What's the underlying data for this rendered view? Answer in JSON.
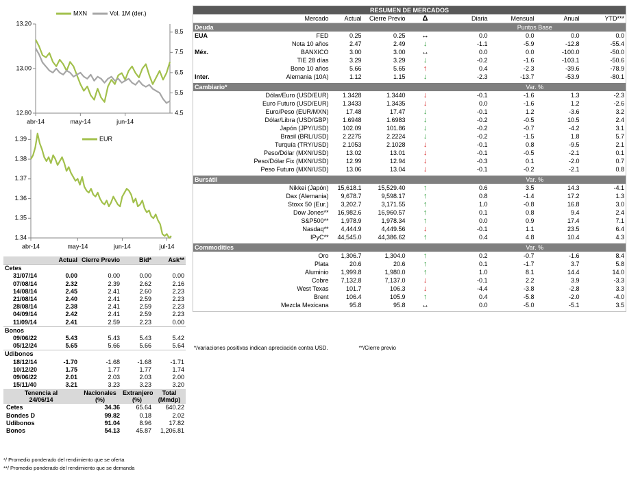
{
  "chart_data": [
    {
      "type": "line",
      "categories": [
        "abr-14",
        null,
        null,
        null,
        null,
        null,
        null,
        null,
        null,
        null,
        null,
        null,
        null,
        "may-14",
        null,
        null,
        null,
        null,
        null,
        null,
        null,
        null,
        null,
        null,
        null,
        null,
        "jun-14",
        null,
        null,
        null,
        null,
        null,
        null,
        null,
        null,
        null,
        null,
        null,
        null,
        null
      ],
      "series": [
        {
          "name": "MXN",
          "color": "#a2c04c",
          "values": [
            13.13,
            13.1,
            13.06,
            13.05,
            13.07,
            13.03,
            13.01,
            13.04,
            13.02,
            12.99,
            13.03,
            13.01,
            12.97,
            12.93,
            12.9,
            12.92,
            12.88,
            12.86,
            12.91,
            12.87,
            12.85,
            12.92,
            12.95,
            12.93,
            12.97,
            12.98,
            12.95,
            12.99,
            13.01,
            12.98,
            12.96,
            13.0,
            13.02,
            12.97,
            12.93,
            12.96,
            12.99,
            12.95,
            12.98,
            13.03
          ]
        },
        {
          "name": "Vol. 1M (der.)",
          "color": "#a6a6a6",
          "axis": "y2",
          "values": [
            7.7,
            7.4,
            7.0,
            6.8,
            6.6,
            6.5,
            6.7,
            6.5,
            6.4,
            6.6,
            6.5,
            6.3,
            6.4,
            6.5,
            6.3,
            6.2,
            6.4,
            6.1,
            6.3,
            6.2,
            6.0,
            6.2,
            6.3,
            6.1,
            6.2,
            6.0,
            6.1,
            6.2,
            6.0,
            5.9,
            6.1,
            5.9,
            5.8,
            5.9,
            5.7,
            5.6,
            5.5,
            5.2,
            5.0,
            5.1
          ]
        }
      ],
      "ylim": [
        12.8,
        13.2
      ],
      "yticks": [
        {
          "value": 12.8,
          "label": "12.80"
        },
        {
          "value": 13.0,
          "label": "13.00"
        },
        {
          "value": 13.2,
          "label": "13.20"
        }
      ],
      "y2lim": [
        4.5,
        8.9
      ],
      "y2ticks": [
        4.5,
        5.5,
        6.5,
        7.5,
        8.5
      ]
    },
    {
      "type": "line",
      "categories": [
        "abr-14",
        null,
        null,
        null,
        null,
        null,
        null,
        null,
        null,
        null,
        null,
        null,
        null,
        null,
        null,
        null,
        null,
        null,
        null,
        null,
        null,
        "may-14",
        null,
        null,
        null,
        null,
        null,
        null,
        null,
        null,
        null,
        null,
        null,
        null,
        null,
        null,
        null,
        null,
        null,
        null,
        null,
        "jun-14",
        null,
        null,
        null,
        null,
        null,
        null,
        null,
        null,
        null,
        null,
        null,
        null,
        null,
        null,
        null,
        null,
        null,
        null,
        null,
        "jul-14",
        null,
        null
      ],
      "series": [
        {
          "name": "EUR",
          "color": "#a2c04c",
          "values": [
            1.38,
            1.382,
            1.386,
            1.393,
            1.388,
            1.385,
            1.381,
            1.379,
            1.381,
            1.378,
            1.382,
            1.38,
            1.377,
            1.379,
            1.381,
            1.378,
            1.374,
            1.376,
            1.373,
            1.371,
            1.369,
            1.37,
            1.367,
            1.371,
            1.366,
            1.364,
            1.363,
            1.365,
            1.362,
            1.361,
            1.363,
            1.36,
            1.358,
            1.357,
            1.359,
            1.356,
            1.358,
            1.361,
            1.359,
            1.357,
            1.356,
            1.361,
            1.363,
            1.365,
            1.364,
            1.362,
            1.358,
            1.36,
            1.356,
            1.357,
            1.359,
            1.355,
            1.353,
            1.354,
            1.351,
            1.35,
            1.352,
            1.349,
            1.347,
            1.342,
            1.341,
            1.342,
            1.34,
            1.341
          ]
        }
      ],
      "ylim": [
        1.34,
        1.395
      ],
      "yticks": [
        1.34,
        1.35,
        1.36,
        1.37,
        1.38,
        1.39
      ]
    }
  ],
  "left_table": {
    "headers": [
      "Actual",
      "Cierre Previo",
      "Bid*",
      "Ask**"
    ],
    "sections": [
      {
        "name": "Cetes",
        "rows": [
          [
            "31/07/14",
            "0.00",
            "0.00",
            "0.00",
            "0.00"
          ],
          [
            "07/08/14",
            "2.32",
            "2.39",
            "2.62",
            "2.16"
          ],
          [
            "14/08/14",
            "2.45",
            "2.41",
            "2.60",
            "2.23"
          ],
          [
            "21/08/14",
            "2.40",
            "2.41",
            "2.59",
            "2.23"
          ],
          [
            "28/08/14",
            "2.38",
            "2.41",
            "2.59",
            "2.23"
          ],
          [
            "04/09/14",
            "2.42",
            "2.41",
            "2.59",
            "2.23"
          ],
          [
            "11/09/14",
            "2.41",
            "2.59",
            "2.23",
            "0.00"
          ]
        ]
      },
      {
        "name": "Bonos",
        "rows": [
          [
            "09/06/22",
            "5.43",
            "5.43",
            "5.43",
            "5.42"
          ],
          [
            "05/12/24",
            "5.65",
            "5.66",
            "5.66",
            "5.64"
          ]
        ]
      },
      {
        "name": "Udibonos",
        "rows": [
          [
            "18/12/14",
            "-1.70",
            "-1.68",
            "-1.68",
            "-1.71"
          ],
          [
            "10/12/20",
            "1.75",
            "1.77",
            "1.77",
            "1.74"
          ],
          [
            "09/06/22",
            "2.01",
            "2.03",
            "2.03",
            "2.00"
          ],
          [
            "15/11/40",
            "3.21",
            "3.23",
            "3.23",
            "3.20"
          ]
        ]
      }
    ],
    "holdings": {
      "headers": [
        "Tenencia al\n24/06/14",
        "Nacionales\n(%)",
        "Extranjeros\n(%)",
        "Total\n(Mmdp)"
      ],
      "rows": [
        [
          "Cetes",
          "34.36",
          "65.64",
          "640.22"
        ],
        [
          "Bondes D",
          "99.82",
          "0.18",
          "2.02"
        ],
        [
          "Udibonos",
          "91.04",
          "8.96",
          "17.82"
        ],
        [
          "Bonos",
          "54.13",
          "45.87",
          "1,206.81"
        ]
      ]
    },
    "notes": [
      "*/ Promedio ponderado del rendimiento que se oferta",
      "**/ Promedio ponderado del rendimiento que se demanda"
    ]
  },
  "right_table": {
    "title": "RESUMEN DE MERCADOS",
    "headers": [
      "Mercado",
      "Actual",
      "Cierre Previo",
      "Δ",
      "Diaria",
      "Mensual",
      "Anual",
      "YTD***"
    ],
    "sections": [
      {
        "name": "Deuda",
        "unit": "Puntos Base",
        "rows": [
          {
            "group": "EUA",
            "cells": [
              "FED",
              "0.25",
              "0.25",
              "↔",
              "0.0",
              "0.0",
              "0.0",
              "0.0"
            ],
            "arrow_color": "#000000"
          },
          {
            "cells": [
              "Nota 10 años",
              "2.47",
              "2.49",
              "↓",
              "-1.1",
              "-5.9",
              "-12.8",
              "-55.4"
            ],
            "arrow_color": "#2e9b3a"
          },
          {
            "group": "Méx.",
            "cells": [
              "BANXICO",
              "3.00",
              "3.00",
              "↔",
              "0.0",
              "0.0",
              "-100.0",
              "-50.0"
            ],
            "arrow_color": "#000000"
          },
          {
            "cells": [
              "TIE 28 días",
              "3.29",
              "3.29",
              "↓",
              "-0.2",
              "-1.6",
              "-103.1",
              "-50.6"
            ],
            "arrow_color": "#2e9b3a"
          },
          {
            "cells": [
              "Bono 10 años",
              "5.66",
              "5.65",
              "↑",
              "0.4",
              "-2.3",
              "-39.6",
              "-78.9"
            ],
            "arrow_color": "#d42020"
          },
          {
            "group": "Inter.",
            "cells": [
              "Alemania (10A)",
              "1.12",
              "1.15",
              "↓",
              "-2.3",
              "-13.7",
              "-53.9",
              "-80.1"
            ],
            "arrow_color": "#2e9b3a"
          }
        ]
      },
      {
        "name": "Cambiario*",
        "unit": "Var. %",
        "rows": [
          {
            "cells": [
              "Dólar/Euro (USD/EUR)",
              "1.3428",
              "1.3440",
              "↓",
              "-0.1",
              "-1.6",
              "1.3",
              "-2.3"
            ],
            "arrow_color": "#d42020"
          },
          {
            "cells": [
              "Euro Futuro (USD/EUR)",
              "1.3433",
              "1.3435",
              "↓",
              "0.0",
              "-1.6",
              "1.2",
              "-2.6"
            ],
            "arrow_color": "#d42020"
          },
          {
            "cells": [
              "Euro/Peso  (EUR/MXN)",
              "17.48",
              "17.47",
              "↓",
              "-0.1",
              "1.2",
              "-3.6",
              "3.2"
            ],
            "arrow_color": "#2e9b3a"
          },
          {
            "cells": [
              "Dólar/Libra (USD/GBP)",
              "1.6948",
              "1.6983",
              "↓",
              "-0.2",
              "-0.5",
              "10.5",
              "2.4"
            ],
            "arrow_color": "#2e9b3a"
          },
          {
            "cells": [
              "Japón (JPY/USD)",
              "102.09",
              "101.86",
              "↓",
              "-0.2",
              "-0.7",
              "-4.2",
              "3.1"
            ],
            "arrow_color": "#2e9b3a"
          },
          {
            "cells": [
              "Brasil (BRL/USD)",
              "2.2275",
              "2.2224",
              "↓",
              "-0.2",
              "-1.5",
              "1.8",
              "5.7"
            ],
            "arrow_color": "#2e9b3a"
          },
          {
            "cells": [
              "Turquía (TRY/USD)",
              "2.1053",
              "2.1028",
              "↓",
              "-0.1",
              "0.8",
              "-9.5",
              "2.1"
            ],
            "arrow_color": "#d42020"
          },
          {
            "cells": [
              "Peso/Dólar (MXN/USD)",
              "13.02",
              "13.01",
              "↓",
              "-0.1",
              "-0.5",
              "-2.1",
              "0.1"
            ],
            "arrow_color": "#d42020"
          },
          {
            "cells": [
              "Peso/Dólar Fix (MXN/USD)",
              "12.99",
              "12.94",
              "↓",
              "-0.3",
              "0.1",
              "-2.0",
              "0.7"
            ],
            "arrow_color": "#d42020"
          },
          {
            "cells": [
              "Peso Futuro (MXN/USD)",
              "13.06",
              "13.04",
              "↓",
              "-0.1",
              "-0.2",
              "-2.1",
              "0.8"
            ],
            "arrow_color": "#d42020"
          }
        ]
      },
      {
        "name": "Bursátil",
        "unit": "Var. %",
        "rows": [
          {
            "cells": [
              "Nikkei (Japón)",
              "15,618.1",
              "15,529.40",
              "↑",
              "0.6",
              "3.5",
              "14.3",
              "-4.1"
            ],
            "arrow_color": "#2e9b3a"
          },
          {
            "cells": [
              "Dax (Alemania)",
              "9,678.7",
              "9,598.17",
              "↑",
              "0.8",
              "-1.4",
              "17.2",
              "1.3"
            ],
            "arrow_color": "#2e9b3a"
          },
          {
            "cells": [
              "Stoxx 50 (Eur.)",
              "3,202.7",
              "3,171.55",
              "↑",
              "1.0",
              "-0.8",
              "16.8",
              "3.0"
            ],
            "arrow_color": "#2e9b3a"
          },
          {
            "cells": [
              "Dow  Jones**",
              "16,982.6",
              "16,960.57",
              "↑",
              "0.1",
              "0.8",
              "9.4",
              "2.4"
            ],
            "arrow_color": "#2e9b3a"
          },
          {
            "cells": [
              "S&P500**",
              "1,978.9",
              "1,978.34",
              "↑",
              "0.0",
              "0.9",
              "17.4",
              "7.1"
            ],
            "arrow_color": "#2e9b3a"
          },
          {
            "cells": [
              "Nasdaq**",
              "4,444.9",
              "4,449.56",
              "↓",
              "-0.1",
              "1.1",
              "23.5",
              "6.4"
            ],
            "arrow_color": "#d42020"
          },
          {
            "cells": [
              "IPyC**",
              "44,545.0",
              "44,386.62",
              "↑",
              "0.4",
              "4.8",
              "10.4",
              "4.3"
            ],
            "arrow_color": "#2e9b3a"
          }
        ]
      },
      {
        "name": "Commodities",
        "unit": "Var. %",
        "rows": [
          {
            "cells": [
              "Oro",
              "1,306.7",
              "1,304.0",
              "↑",
              "0.2",
              "-0.7",
              "-1.6",
              "8.4"
            ],
            "arrow_color": "#2e9b3a"
          },
          {
            "cells": [
              "Plata",
              "20.6",
              "20.6",
              "↑",
              "0.1",
              "-1.7",
              "3.7",
              "5.8"
            ],
            "arrow_color": "#2e9b3a"
          },
          {
            "cells": [
              "Aluminio",
              "1,999.8",
              "1,980.0",
              "↑",
              "1.0",
              "8.1",
              "14.4",
              "14.0"
            ],
            "arrow_color": "#2e9b3a"
          },
          {
            "cells": [
              "Cobre",
              "7,132.8",
              "7,137.0",
              "↓",
              "-0.1",
              "2.2",
              "3.9",
              "-3.3"
            ],
            "arrow_color": "#d42020"
          },
          {
            "cells": [
              "West Texas",
              "101.7",
              "106.3",
              "↓",
              "-4.4",
              "-3.8",
              "-2.8",
              "3.3"
            ],
            "arrow_color": "#d42020"
          },
          {
            "cells": [
              "Brent",
              "106.4",
              "105.9",
              "↑",
              "0.4",
              "-5.8",
              "-2.0",
              "-4.0"
            ],
            "arrow_color": "#2e9b3a"
          },
          {
            "cells": [
              "Mezcla Mexicana",
              "95.8",
              "95.8",
              "↔",
              "0.0",
              "-5.0",
              "-5.1",
              "3.5"
            ],
            "arrow_color": "#000000"
          }
        ]
      }
    ],
    "notes": [
      "*/variaciones positivas indican apreciación contra USD.",
      "**/Cierre previo"
    ]
  }
}
